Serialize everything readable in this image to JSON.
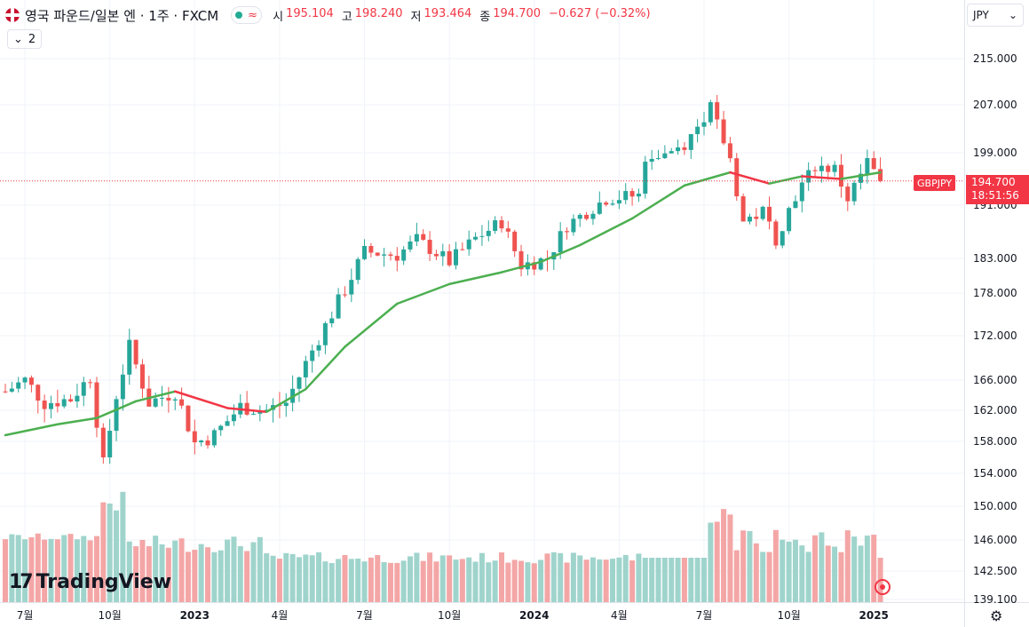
{
  "header": {
    "symbol_title": "영국 파운드/일본 엔 · 1주 · FXCM",
    "wave_icon": "≈",
    "ohlc": [
      {
        "key": "시",
        "value": "195.104"
      },
      {
        "key": "고",
        "value": "198.240"
      },
      {
        "key": "저",
        "value": "193.464"
      },
      {
        "key": "종",
        "value": "194.700"
      },
      {
        "key": "",
        "value": "−0.627 (−0.32%)"
      }
    ],
    "indicator_count": "2",
    "indicator_chevron": "⌄"
  },
  "currency": {
    "label": "JPY",
    "chevron": "⌄"
  },
  "price_tag": {
    "symbol": "GBPJPY",
    "price": "194.700",
    "countdown": "18:51:56"
  },
  "logo": {
    "mark": "17",
    "name": "TradingView"
  },
  "colors": {
    "up": "#26a69a",
    "down": "#ef5350",
    "ma_up": "#4caf50",
    "ma_down": "#f23645",
    "vol_up": "#9fd4cc",
    "vol_down": "#f4a6a6"
  },
  "chart_data": {
    "type": "candlestick",
    "title": "영국 파운드/일본 엔 · 1주 · FXCM",
    "interval": "weekly",
    "y_axis_ticks": [
      215,
      207,
      199,
      191,
      183,
      178,
      172,
      166,
      162,
      158,
      154,
      150,
      146,
      142.5,
      139.1
    ],
    "y_axis_labels": [
      "215.000",
      "207.000",
      "199.000",
      "191.000",
      "183.000",
      "178.000",
      "172.000",
      "166.000",
      "162.000",
      "158.000",
      "154.000",
      "150.000",
      "146.000",
      "142.500",
      "139.100"
    ],
    "x_axis_labels": [
      {
        "label": "7월",
        "week": 3
      },
      {
        "label": "10월",
        "week": 16
      },
      {
        "label": "2023",
        "week": 29
      },
      {
        "label": "4월",
        "week": 42
      },
      {
        "label": "7월",
        "week": 55
      },
      {
        "label": "10월",
        "week": 68
      },
      {
        "label": "2024",
        "week": 81
      },
      {
        "label": "4월",
        "week": 94
      },
      {
        "label": "7월",
        "week": 107
      },
      {
        "label": "10월",
        "week": 120
      },
      {
        "label": "2025",
        "week": 133
      }
    ],
    "last_close": 194.7,
    "moving_average": {
      "name": "MA",
      "points": [
        [
          0,
          158.8
        ],
        [
          8,
          160.2
        ],
        [
          14,
          161.0
        ],
        [
          20,
          163.2
        ],
        [
          26,
          164.5
        ],
        [
          34,
          162.3
        ],
        [
          40,
          161.8
        ],
        [
          46,
          164.8
        ],
        [
          52,
          170.5
        ],
        [
          60,
          176.5
        ],
        [
          68,
          179.3
        ],
        [
          76,
          181.0
        ],
        [
          82,
          182.5
        ],
        [
          88,
          185.0
        ],
        [
          96,
          189.0
        ],
        [
          104,
          194.0
        ],
        [
          111,
          196.0
        ],
        [
          117,
          194.3
        ],
        [
          122,
          195.4
        ],
        [
          128,
          195.0
        ],
        [
          134,
          196.0
        ]
      ]
    },
    "price_path": [
      [
        0,
        164.5
      ],
      [
        3,
        166.0
      ],
      [
        6,
        163.0
      ],
      [
        10,
        163.5
      ],
      [
        13,
        166.5
      ],
      [
        15,
        155.0
      ],
      [
        17,
        164.0
      ],
      [
        19,
        170.5
      ],
      [
        22,
        163.0
      ],
      [
        26,
        164.5
      ],
      [
        29,
        157.8
      ],
      [
        32,
        158.8
      ],
      [
        36,
        162.5
      ],
      [
        40,
        162.0
      ],
      [
        43,
        163.0
      ],
      [
        47,
        170.0
      ],
      [
        52,
        178.5
      ],
      [
        55,
        184.0
      ],
      [
        60,
        183.5
      ],
      [
        63,
        185.8
      ],
      [
        68,
        182.5
      ],
      [
        72,
        186.0
      ],
      [
        76,
        188.5
      ],
      [
        79,
        182.0
      ],
      [
        83,
        183.0
      ],
      [
        86,
        188.0
      ],
      [
        92,
        192.0
      ],
      [
        97,
        192.5
      ],
      [
        98,
        198.5
      ],
      [
        101,
        199.0
      ],
      [
        104,
        200.5
      ],
      [
        108,
        206.5
      ],
      [
        111,
        198.0
      ],
      [
        113,
        188.5
      ],
      [
        116,
        190.0
      ],
      [
        118,
        186.0
      ],
      [
        121,
        192.5
      ],
      [
        124,
        197.0
      ],
      [
        127,
        196.5
      ],
      [
        129,
        192.0
      ],
      [
        132,
        197.5
      ],
      [
        134,
        194.7
      ]
    ],
    "volume": [
      {
        "week_range": [
          0,
          15
        ],
        "level": "moderate",
        "relative": [
          0.55,
          0.62
        ]
      },
      {
        "week_range": [
          15,
          19
        ],
        "level": "high",
        "relative": [
          0.8,
          1.0
        ]
      },
      {
        "week_range": [
          19,
          40
        ],
        "level": "moderate",
        "relative": [
          0.45,
          0.6
        ]
      },
      {
        "week_range": [
          40,
          98
        ],
        "level": "low",
        "relative": [
          0.35,
          0.45
        ]
      },
      {
        "week_range": [
          108,
          112
        ],
        "level": "high",
        "relative": [
          0.6,
          0.9
        ]
      },
      {
        "week_range": [
          112,
          134
        ],
        "level": "moderate",
        "relative": [
          0.45,
          0.65
        ]
      }
    ],
    "legend": "none"
  }
}
